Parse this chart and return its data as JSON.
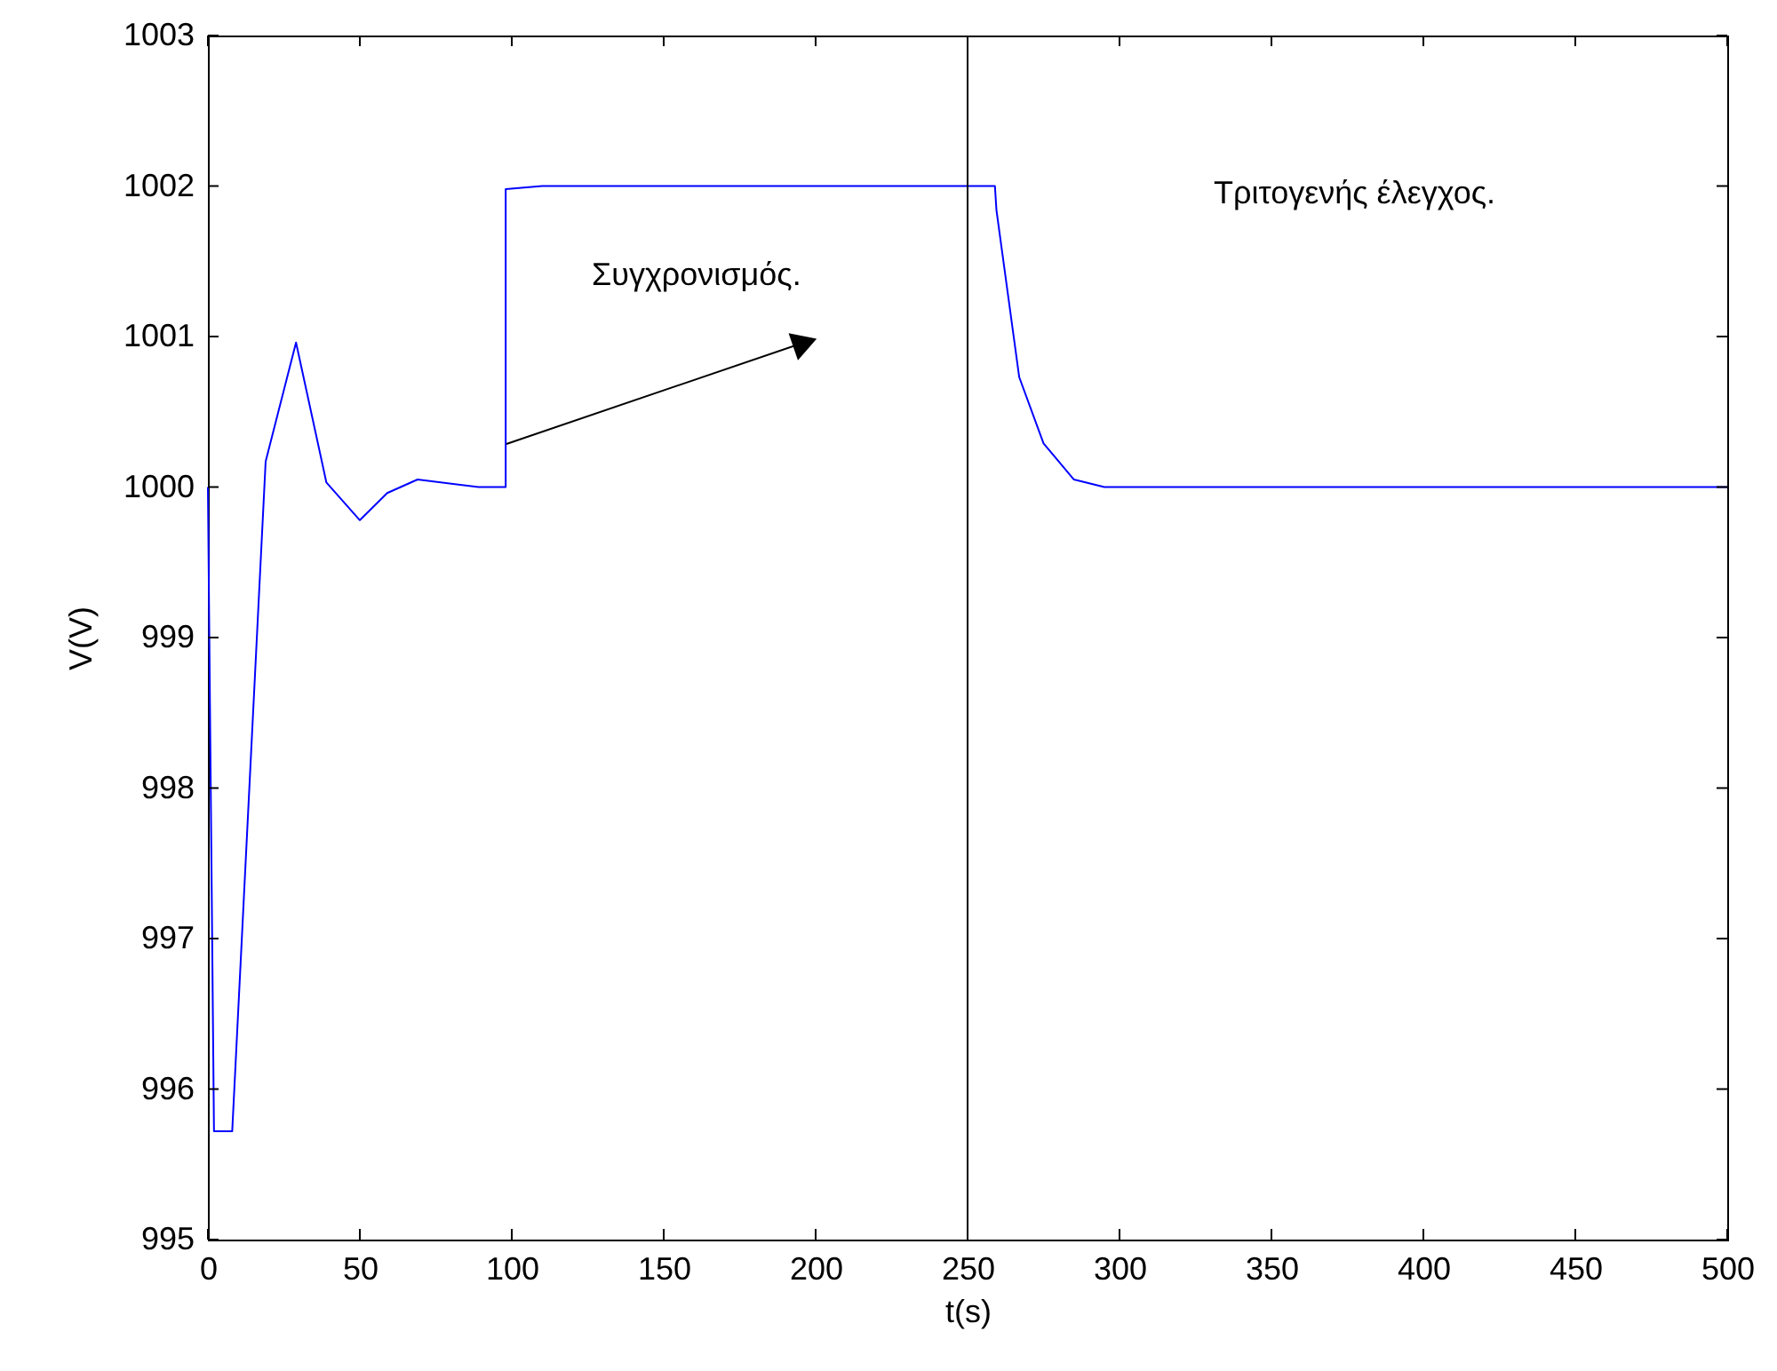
{
  "chart_data": {
    "type": "line",
    "xlabel": "t(s)",
    "ylabel": "V(V)",
    "x": [
      0,
      2,
      8,
      19,
      29,
      39,
      50,
      59,
      69,
      89,
      98,
      98,
      110,
      259,
      259.5,
      267,
      275,
      285,
      295,
      500
    ],
    "series": [
      {
        "color": "#0000ff",
        "values": [
          1000,
          995.72,
          995.72,
          1000.17,
          1000.96,
          1000.03,
          999.78,
          999.96,
          1000.05,
          1000.0,
          1000.0,
          1001.98,
          1002.0,
          1002.0,
          1001.84,
          1000.73,
          1000.29,
          1000.05,
          1000.0,
          1000.0
        ]
      }
    ],
    "xlim": [
      0,
      500
    ],
    "ylim": [
      995,
      1003
    ],
    "xticks": [
      0,
      50,
      100,
      150,
      200,
      250,
      300,
      350,
      400,
      450,
      500
    ],
    "yticks": [
      995,
      996,
      997,
      998,
      999,
      1000,
      1001,
      1002,
      1003
    ],
    "ref_lines": [
      {
        "axis": "x",
        "value": 250,
        "color": "#000000"
      }
    ],
    "annotations": [
      "Συγχρονισμός.",
      "Τριτογενής έλεγχος."
    ],
    "grid": false,
    "marker": "none",
    "line_style": "solid"
  }
}
